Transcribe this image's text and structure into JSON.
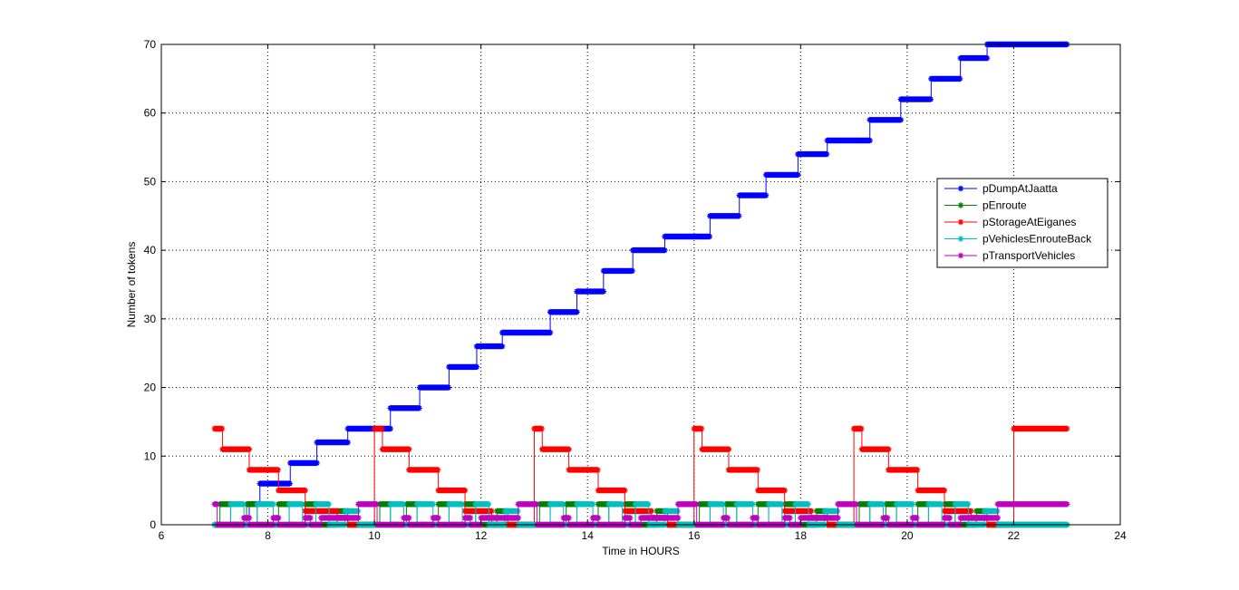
{
  "chart_data": {
    "type": "line",
    "xlabel": "Time in HOURS",
    "ylabel": "Number of tokens",
    "xlim": [
      6,
      24
    ],
    "ylim": [
      0,
      70
    ],
    "xticks": [
      6,
      8,
      10,
      12,
      14,
      16,
      18,
      20,
      22,
      24
    ],
    "yticks": [
      0,
      10,
      20,
      30,
      40,
      50,
      60,
      70
    ],
    "grid": true,
    "legend_position": "right",
    "series": [
      {
        "name": "pDumpAtJaatta",
        "color": "#0000ff",
        "marker": "*",
        "step_points": [
          [
            7.0,
            0
          ],
          [
            7.65,
            3
          ],
          [
            7.85,
            6
          ],
          [
            8.42,
            9
          ],
          [
            8.92,
            12
          ],
          [
            9.5,
            14
          ],
          [
            10.3,
            17
          ],
          [
            10.85,
            20
          ],
          [
            11.4,
            23
          ],
          [
            11.92,
            26
          ],
          [
            12.4,
            28
          ],
          [
            13.3,
            31
          ],
          [
            13.8,
            34
          ],
          [
            14.3,
            37
          ],
          [
            14.85,
            40
          ],
          [
            15.45,
            42
          ],
          [
            16.3,
            45
          ],
          [
            16.85,
            48
          ],
          [
            17.35,
            51
          ],
          [
            17.95,
            54
          ],
          [
            18.5,
            56
          ],
          [
            19.3,
            59
          ],
          [
            19.88,
            62
          ],
          [
            20.45,
            65
          ],
          [
            21.0,
            68
          ],
          [
            21.5,
            70
          ],
          [
            23.0,
            70
          ]
        ]
      },
      {
        "name": "pEnroute",
        "color": "#008000",
        "marker": "*",
        "step_points": [
          [
            7.0,
            0
          ],
          [
            7.1,
            3
          ],
          [
            7.3,
            0
          ],
          [
            7.6,
            3
          ],
          [
            7.8,
            0
          ],
          [
            8.2,
            3
          ],
          [
            8.4,
            0
          ],
          [
            8.7,
            3
          ],
          [
            8.9,
            0
          ],
          [
            9.3,
            2
          ],
          [
            9.5,
            0
          ],
          [
            10.1,
            3
          ],
          [
            10.3,
            0
          ],
          [
            10.6,
            3
          ],
          [
            10.8,
            0
          ],
          [
            11.2,
            3
          ],
          [
            11.4,
            0
          ],
          [
            11.7,
            3
          ],
          [
            11.9,
            0
          ],
          [
            12.3,
            2
          ],
          [
            12.5,
            0
          ],
          [
            13.1,
            3
          ],
          [
            13.3,
            0
          ],
          [
            13.6,
            3
          ],
          [
            13.8,
            0
          ],
          [
            14.2,
            3
          ],
          [
            14.4,
            0
          ],
          [
            14.7,
            3
          ],
          [
            14.9,
            0
          ],
          [
            15.3,
            2
          ],
          [
            15.5,
            0
          ],
          [
            16.1,
            3
          ],
          [
            16.3,
            0
          ],
          [
            16.6,
            3
          ],
          [
            16.8,
            0
          ],
          [
            17.2,
            3
          ],
          [
            17.4,
            0
          ],
          [
            17.7,
            3
          ],
          [
            17.9,
            0
          ],
          [
            18.3,
            2
          ],
          [
            18.5,
            0
          ],
          [
            19.1,
            3
          ],
          [
            19.3,
            0
          ],
          [
            19.6,
            3
          ],
          [
            19.8,
            0
          ],
          [
            20.2,
            3
          ],
          [
            20.4,
            0
          ],
          [
            20.7,
            3
          ],
          [
            20.9,
            0
          ],
          [
            21.3,
            2
          ],
          [
            21.5,
            0
          ],
          [
            23.0,
            0
          ]
        ]
      },
      {
        "name": "pStorageAtEiganes",
        "color": "#ff0000",
        "marker": "*",
        "step_points": [
          [
            7.0,
            14
          ],
          [
            7.15,
            11
          ],
          [
            7.65,
            8
          ],
          [
            8.2,
            5
          ],
          [
            8.7,
            2
          ],
          [
            9.3,
            1
          ],
          [
            9.5,
            0
          ],
          [
            10.0,
            14
          ],
          [
            10.15,
            11
          ],
          [
            10.65,
            8
          ],
          [
            11.2,
            5
          ],
          [
            11.7,
            2
          ],
          [
            12.2,
            0
          ],
          [
            12.5,
            0
          ],
          [
            13.0,
            14
          ],
          [
            13.15,
            11
          ],
          [
            13.65,
            8
          ],
          [
            14.2,
            5
          ],
          [
            14.7,
            2
          ],
          [
            15.2,
            1
          ],
          [
            15.5,
            0
          ],
          [
            16.0,
            14
          ],
          [
            16.15,
            11
          ],
          [
            16.65,
            8
          ],
          [
            17.2,
            5
          ],
          [
            17.7,
            2
          ],
          [
            18.2,
            1
          ],
          [
            18.5,
            0
          ],
          [
            19.0,
            14
          ],
          [
            19.15,
            11
          ],
          [
            19.65,
            8
          ],
          [
            20.2,
            5
          ],
          [
            20.7,
            2
          ],
          [
            21.2,
            1
          ],
          [
            21.5,
            0
          ],
          [
            22.0,
            14
          ],
          [
            23.0,
            14
          ]
        ]
      },
      {
        "name": "pVehiclesEnrouteBack",
        "color": "#00bfbf",
        "marker": "*",
        "step_points": [
          [
            7.0,
            0
          ],
          [
            7.3,
            3
          ],
          [
            7.55,
            0
          ],
          [
            7.8,
            3
          ],
          [
            8.1,
            0
          ],
          [
            8.4,
            3
          ],
          [
            8.65,
            0
          ],
          [
            8.9,
            3
          ],
          [
            9.15,
            0
          ],
          [
            9.45,
            2
          ],
          [
            9.7,
            0
          ],
          [
            10.3,
            3
          ],
          [
            10.55,
            0
          ],
          [
            10.8,
            3
          ],
          [
            11.1,
            0
          ],
          [
            11.4,
            3
          ],
          [
            11.65,
            0
          ],
          [
            11.9,
            3
          ],
          [
            12.15,
            0
          ],
          [
            12.45,
            2
          ],
          [
            12.7,
            0
          ],
          [
            13.3,
            3
          ],
          [
            13.55,
            0
          ],
          [
            13.8,
            3
          ],
          [
            14.1,
            0
          ],
          [
            14.4,
            3
          ],
          [
            14.65,
            0
          ],
          [
            14.9,
            3
          ],
          [
            15.15,
            0
          ],
          [
            15.45,
            2
          ],
          [
            15.7,
            0
          ],
          [
            16.3,
            3
          ],
          [
            16.55,
            0
          ],
          [
            16.8,
            3
          ],
          [
            17.1,
            0
          ],
          [
            17.4,
            3
          ],
          [
            17.65,
            0
          ],
          [
            17.9,
            3
          ],
          [
            18.15,
            0
          ],
          [
            18.45,
            2
          ],
          [
            18.7,
            0
          ],
          [
            19.3,
            3
          ],
          [
            19.55,
            0
          ],
          [
            19.8,
            3
          ],
          [
            20.1,
            0
          ],
          [
            20.4,
            3
          ],
          [
            20.65,
            0
          ],
          [
            20.9,
            3
          ],
          [
            21.15,
            0
          ],
          [
            21.45,
            2
          ],
          [
            21.7,
            0
          ],
          [
            23.0,
            0
          ]
        ]
      },
      {
        "name": "pTransportVehicles",
        "color": "#bf00bf",
        "marker": "*",
        "step_points": [
          [
            7.0,
            3
          ],
          [
            7.05,
            0
          ],
          [
            7.5,
            0
          ],
          [
            7.55,
            1
          ],
          [
            7.65,
            0
          ],
          [
            8.0,
            0
          ],
          [
            8.1,
            1
          ],
          [
            8.2,
            0
          ],
          [
            8.6,
            0
          ],
          [
            8.7,
            1
          ],
          [
            8.8,
            0
          ],
          [
            9.0,
            1
          ],
          [
            9.4,
            1
          ],
          [
            9.7,
            3
          ],
          [
            10.0,
            3
          ],
          [
            10.05,
            0
          ],
          [
            10.5,
            0
          ],
          [
            10.55,
            1
          ],
          [
            10.65,
            0
          ],
          [
            11.0,
            0
          ],
          [
            11.1,
            1
          ],
          [
            11.2,
            0
          ],
          [
            11.6,
            0
          ],
          [
            11.7,
            1
          ],
          [
            11.8,
            0
          ],
          [
            12.0,
            1
          ],
          [
            12.4,
            1
          ],
          [
            12.7,
            3
          ],
          [
            13.0,
            3
          ],
          [
            13.05,
            0
          ],
          [
            13.5,
            0
          ],
          [
            13.55,
            1
          ],
          [
            13.65,
            0
          ],
          [
            14.0,
            0
          ],
          [
            14.1,
            1
          ],
          [
            14.2,
            0
          ],
          [
            14.6,
            0
          ],
          [
            14.7,
            1
          ],
          [
            14.8,
            0
          ],
          [
            15.0,
            1
          ],
          [
            15.4,
            1
          ],
          [
            15.7,
            3
          ],
          [
            16.0,
            3
          ],
          [
            16.05,
            0
          ],
          [
            16.5,
            0
          ],
          [
            16.55,
            1
          ],
          [
            16.65,
            0
          ],
          [
            17.0,
            0
          ],
          [
            17.1,
            1
          ],
          [
            17.2,
            0
          ],
          [
            17.6,
            0
          ],
          [
            17.7,
            1
          ],
          [
            17.8,
            0
          ],
          [
            18.0,
            1
          ],
          [
            18.4,
            1
          ],
          [
            18.7,
            3
          ],
          [
            19.0,
            3
          ],
          [
            19.05,
            0
          ],
          [
            19.5,
            0
          ],
          [
            19.55,
            1
          ],
          [
            19.65,
            0
          ],
          [
            20.0,
            0
          ],
          [
            20.1,
            1
          ],
          [
            20.2,
            0
          ],
          [
            20.6,
            0
          ],
          [
            20.7,
            1
          ],
          [
            20.8,
            0
          ],
          [
            21.0,
            1
          ],
          [
            21.4,
            1
          ],
          [
            21.7,
            3
          ],
          [
            23.0,
            3
          ]
        ]
      }
    ]
  }
}
